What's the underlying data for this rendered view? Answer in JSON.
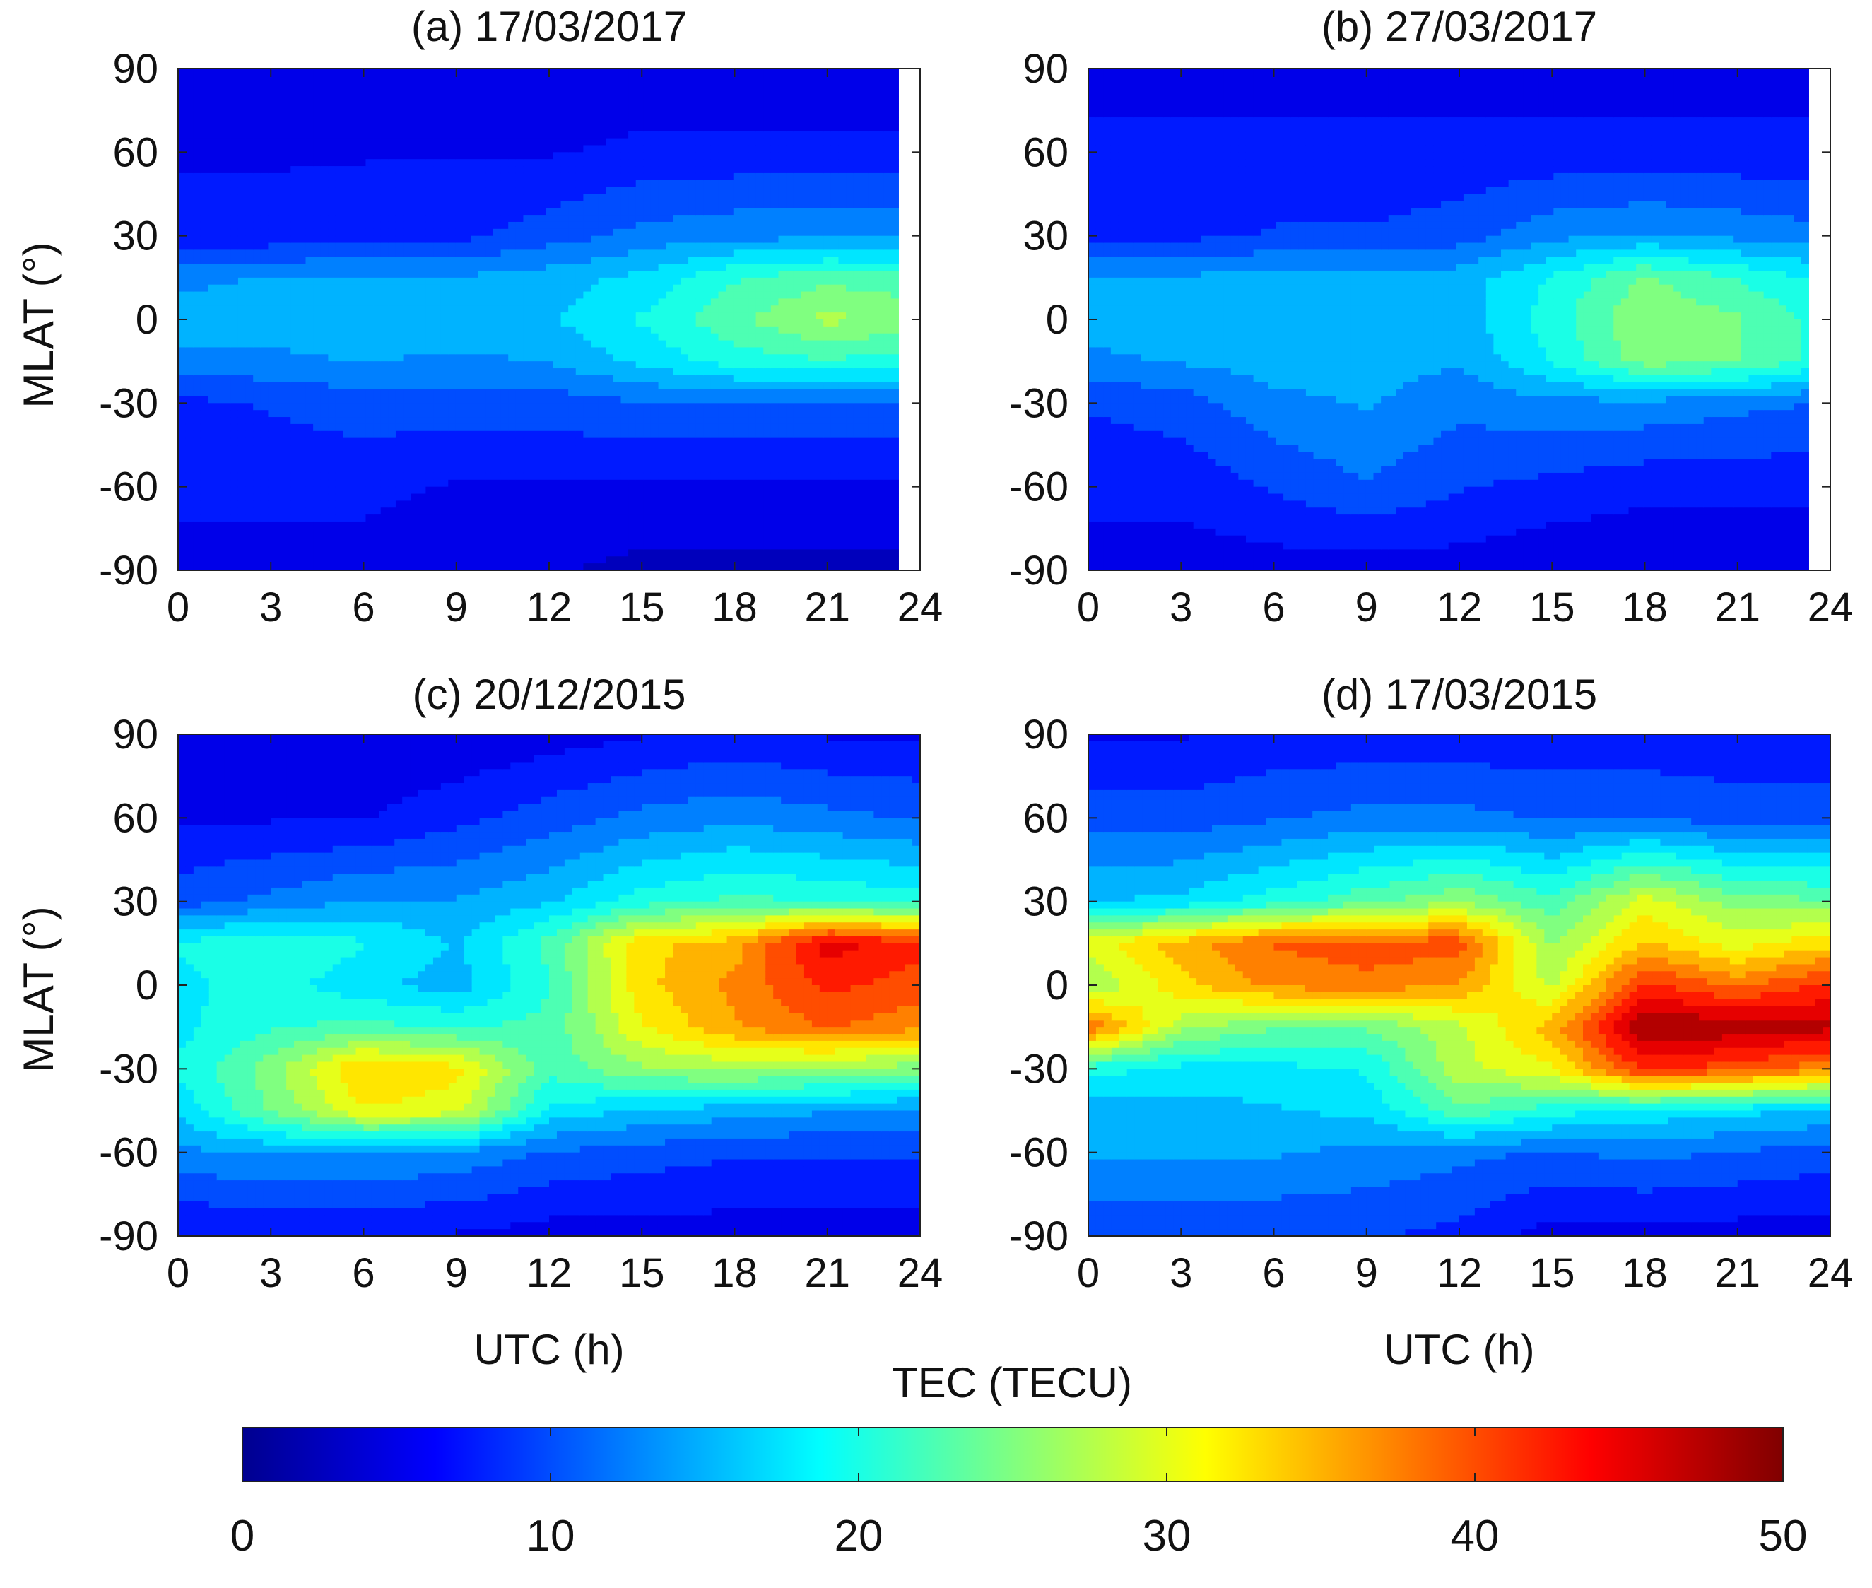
{
  "figure": {
    "colorbar": {
      "label": "TEC (TECU)",
      "min": 0,
      "max": 50,
      "ticks": [
        0,
        10,
        20,
        30,
        40,
        50
      ],
      "colormap": [
        "#00008f",
        "#0000ff",
        "#0080ff",
        "#00ffff",
        "#80ff80",
        "#ffff00",
        "#ff8000",
        "#ff0000",
        "#800000"
      ]
    }
  },
  "chart_data": [
    {
      "type": "heatmap",
      "panel": "a",
      "title": "(a) 17/03/2017",
      "xlabel": "",
      "ylabel": "MLAT (°)",
      "xlim": [
        0,
        24
      ],
      "ylim": [
        -90,
        90
      ],
      "xticks": [
        0,
        3,
        6,
        9,
        12,
        15,
        18,
        21,
        24
      ],
      "yticks": [
        90,
        60,
        30,
        0,
        -30,
        -60,
        -90
      ],
      "data_xmax": 23.3,
      "x_utc_h": [
        0,
        3,
        6,
        9,
        12,
        15,
        18,
        21,
        24
      ],
      "y_mlat": [
        90,
        60,
        30,
        15,
        0,
        -15,
        -30,
        -60,
        -90
      ],
      "tec_tecu": [
        [
          4,
          4,
          4,
          4,
          4,
          4,
          4,
          4,
          4
        ],
        [
          6,
          6,
          6,
          6,
          6,
          7,
          7,
          7,
          7
        ],
        [
          7,
          7,
          8,
          8,
          10,
          12,
          13,
          13,
          13
        ],
        [
          13,
          14,
          14,
          14,
          15,
          17,
          21,
          23,
          22
        ],
        [
          15,
          15,
          16,
          16,
          16,
          19,
          23,
          27,
          25
        ],
        [
          13,
          13,
          14,
          13,
          14,
          17,
          20,
          21,
          20
        ],
        [
          8,
          9,
          10,
          10,
          10,
          11,
          11,
          11,
          11
        ],
        [
          7,
          7,
          7,
          6,
          6,
          6,
          6,
          6,
          6
        ],
        [
          5,
          5,
          5,
          4,
          4,
          3,
          3,
          3,
          3
        ]
      ]
    },
    {
      "type": "heatmap",
      "panel": "b",
      "title": "(b) 27/03/2017",
      "xlabel": "",
      "ylabel": "",
      "xlim": [
        0,
        24
      ],
      "ylim": [
        -90,
        90
      ],
      "xticks": [
        0,
        3,
        6,
        9,
        12,
        15,
        18,
        21,
        24
      ],
      "yticks": [
        90,
        60,
        30,
        0,
        -30,
        -60,
        -90
      ],
      "data_xmax": 23.3,
      "x_utc_h": [
        0,
        3,
        6,
        9,
        12,
        15,
        18,
        21,
        24
      ],
      "y_mlat": [
        90,
        60,
        30,
        15,
        0,
        -15,
        -30,
        -60,
        -90
      ],
      "tec_tecu": [
        [
          5,
          5,
          5,
          5,
          5,
          5,
          5,
          5,
          5
        ],
        [
          7,
          7,
          7,
          7,
          7,
          7,
          7,
          7,
          7
        ],
        [
          8,
          8,
          9,
          9,
          10,
          13,
          14,
          13,
          12
        ],
        [
          14,
          14,
          15,
          15,
          15,
          19,
          24,
          21,
          18
        ],
        [
          15,
          16,
          16,
          16,
          15,
          20,
          26,
          24,
          20
        ],
        [
          13,
          14,
          15,
          15,
          14,
          19,
          25,
          24,
          20
        ],
        [
          9,
          10,
          13,
          14,
          12,
          13,
          13,
          12,
          11
        ],
        [
          7,
          7,
          9,
          11,
          9,
          8,
          7,
          7,
          7
        ],
        [
          5,
          5,
          5,
          5,
          5,
          4,
          4,
          4,
          4
        ]
      ]
    },
    {
      "type": "heatmap",
      "panel": "c",
      "title": "(c) 20/12/2015",
      "xlabel": "UTC (h)",
      "ylabel": "MLAT (°)",
      "xlim": [
        0,
        24
      ],
      "ylim": [
        -90,
        90
      ],
      "xticks": [
        0,
        3,
        6,
        9,
        12,
        15,
        18,
        21,
        24
      ],
      "yticks": [
        90,
        60,
        30,
        0,
        -30,
        -60,
        -90
      ],
      "data_xmax": 24,
      "x_utc_h": [
        0,
        3,
        6,
        9,
        12,
        15,
        18,
        21,
        24
      ],
      "y_mlat": [
        90,
        60,
        30,
        15,
        0,
        -15,
        -30,
        -45,
        -60,
        -90
      ],
      "tec_tecu": [
        [
          4,
          4,
          4,
          4,
          5,
          6,
          7,
          6,
          6
        ],
        [
          6,
          6,
          6,
          8,
          10,
          12,
          13,
          12,
          11
        ],
        [
          10,
          12,
          14,
          14,
          16,
          20,
          22,
          21,
          20
        ],
        [
          19,
          21,
          19,
          16,
          22,
          33,
          35,
          45,
          42
        ],
        [
          18,
          20,
          17,
          15,
          21,
          33,
          37,
          42,
          40
        ],
        [
          18,
          21,
          22,
          21,
          22,
          31,
          36,
          39,
          37
        ],
        [
          19,
          25,
          34,
          32,
          22,
          26,
          27,
          26,
          25
        ],
        [
          17,
          24,
          31,
          30,
          18,
          16,
          15,
          14,
          13
        ],
        [
          13,
          14,
          14,
          13,
          11,
          10,
          9,
          9,
          9
        ],
        [
          6,
          6,
          6,
          6,
          5,
          5,
          5,
          5,
          5
        ]
      ]
    },
    {
      "type": "heatmap",
      "panel": "d",
      "title": "(d) 17/03/2015",
      "xlabel": "UTC (h)",
      "ylabel": "",
      "xlim": [
        0,
        24
      ],
      "ylim": [
        -90,
        90
      ],
      "xticks": [
        0,
        3,
        6,
        9,
        12,
        15,
        18,
        21,
        24
      ],
      "yticks": [
        90,
        60,
        30,
        0,
        -30,
        -60,
        -90
      ],
      "data_xmax": 24,
      "x_utc_h": [
        0,
        3,
        6,
        9,
        12,
        15,
        18,
        21,
        24
      ],
      "y_mlat": [
        90,
        60,
        30,
        15,
        0,
        -15,
        -30,
        -45,
        -60,
        -90
      ],
      "tec_tecu": [
        [
          6,
          6,
          7,
          7,
          7,
          7,
          7,
          7,
          7
        ],
        [
          10,
          10,
          11,
          12,
          12,
          11,
          11,
          10,
          10
        ],
        [
          16,
          17,
          20,
          23,
          26,
          22,
          30,
          25,
          24
        ],
        [
          30,
          35,
          39,
          40,
          40,
          26,
          34,
          30,
          33
        ],
        [
          26,
          33,
          37,
          38,
          36,
          28,
          42,
          38,
          42
        ],
        [
          39,
          27,
          24,
          24,
          28,
          35,
          49,
          48,
          47
        ],
        [
          20,
          18,
          18,
          19,
          28,
          31,
          42,
          40,
          37
        ],
        [
          15,
          15,
          16,
          17,
          23,
          20,
          18,
          17,
          16
        ],
        [
          14,
          14,
          14,
          13,
          12,
          11,
          12,
          11,
          10
        ],
        [
          9,
          9,
          9,
          9,
          8,
          5,
          5,
          5,
          5
        ]
      ]
    }
  ]
}
